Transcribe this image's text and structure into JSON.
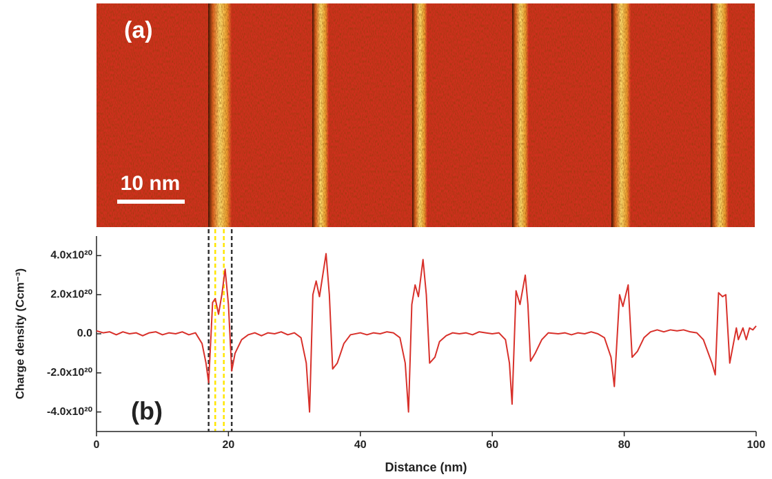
{
  "image": {
    "label": "(a)",
    "scale_bar": "10 nm"
  },
  "chart_data": {
    "type": "line",
    "panel_label": "(b)",
    "x_label": "Distance (nm)",
    "y_label": "Charge density (Ccm⁻³)",
    "color": "#d8302a",
    "x": [
      0,
      1,
      2,
      3,
      4,
      5,
      6,
      7,
      8,
      9,
      10,
      11,
      12,
      13,
      14,
      15,
      16,
      16.6,
      17,
      17.6,
      18,
      18.5,
      19,
      19.5,
      20,
      20.5,
      21,
      22,
      23,
      24,
      25,
      26,
      27,
      28,
      29,
      30,
      31,
      31.8,
      32.3,
      32.8,
      33.3,
      33.8,
      34.3,
      34.8,
      35.3,
      35.8,
      36.5,
      37.5,
      38.5,
      40,
      41,
      42,
      43,
      44,
      45,
      46,
      46.8,
      47.3,
      47.8,
      48.3,
      48.8,
      49.5,
      50,
      50.5,
      51.3,
      52,
      53,
      54,
      55,
      56,
      57,
      58,
      59,
      60,
      61,
      62,
      62.6,
      63,
      63.6,
      64.2,
      65,
      65.4,
      65.8,
      66.5,
      67.5,
      68.5,
      70,
      71,
      72,
      73,
      74,
      75,
      76,
      77,
      78,
      78.5,
      79.3,
      79.8,
      80.6,
      81.2,
      82,
      83,
      84,
      85,
      86,
      87,
      88,
      89,
      90,
      91,
      92,
      93.3,
      93.8,
      94.3,
      94.9,
      95.4,
      96,
      96.5,
      97,
      97.3,
      98,
      98.5,
      99,
      99.5,
      100
    ],
    "values": [
      1.5e+19,
      5e+18,
      1e+19,
      -5e+18,
      1e+19,
      0,
      5e+18,
      -1e+19,
      5e+18,
      1e+19,
      -5e+18,
      5e+18,
      0,
      1e+19,
      -5e+18,
      5e+18,
      -5e+19,
      -1.5e+20,
      -2.5e+20,
      1.6e+20,
      1.8e+20,
      1e+20,
      2e+20,
      3.3e+20,
      1.5e+20,
      -1.9e+20,
      -1e+20,
      -3e+19,
      -5e+18,
      5e+18,
      -1e+19,
      5e+18,
      0,
      1e+19,
      -5e+18,
      5e+18,
      -2e+19,
      -1.5e+20,
      -4e+20,
      2e+20,
      2.7e+20,
      1.9e+20,
      3e+20,
      4.1e+20,
      2e+20,
      -1.8e+20,
      -1.5e+20,
      -5e+19,
      -5e+18,
      5e+18,
      -5e+18,
      5e+18,
      0,
      1e+19,
      5e+18,
      -2e+19,
      -1.5e+20,
      -4e+20,
      1.5e+20,
      2.5e+20,
      1.9e+20,
      3.8e+20,
      2e+20,
      -1.5e+20,
      -1.2e+20,
      -4e+19,
      -1e+19,
      5e+18,
      0,
      5e+18,
      -5e+18,
      1e+19,
      5e+18,
      0,
      5e+18,
      -3e+19,
      -1.5e+20,
      -3.6e+20,
      2.2e+20,
      1.5e+20,
      3e+20,
      1.5e+20,
      -1.4e+20,
      -1e+20,
      -3e+19,
      5e+18,
      0,
      5e+18,
      -5e+18,
      5e+18,
      0,
      1e+19,
      0,
      -2e+19,
      -1.2e+20,
      -2.7e+20,
      2e+20,
      1.4e+20,
      2.5e+20,
      -1.2e+20,
      -9e+19,
      -2e+19,
      1e+19,
      2e+19,
      1e+19,
      2e+19,
      1.5e+19,
      2e+19,
      1e+19,
      5e+18,
      -3e+19,
      -1.5e+20,
      -2.1e+20,
      2.1e+20,
      1.9e+20,
      2e+20,
      -1.5e+20,
      -6e+19,
      3e+19,
      -3e+19,
      3e+19,
      -3e+19,
      3e+19,
      2e+19,
      4e+19
    ],
    "xlim": [
      0,
      100
    ],
    "xticks": [
      0,
      20,
      40,
      60,
      80,
      100
    ],
    "ylim": [
      -5e+20,
      5e+20
    ],
    "yticks": [
      {
        "value": -4e+20,
        "label": "-4.0x10²⁰"
      },
      {
        "value": -2e+20,
        "label": "-2.0x10²⁰"
      },
      {
        "value": 0,
        "label": "0.0"
      },
      {
        "value": 2e+20,
        "label": "2.0x10²⁰"
      },
      {
        "value": 4e+20,
        "label": "4.0x10²⁰"
      }
    ],
    "marker_lines": [
      {
        "x": 17,
        "color": "#333333"
      },
      {
        "x": 18,
        "color": "#ffe600"
      },
      {
        "x": 19.3,
        "color": "#ffe600"
      },
      {
        "x": 20.5,
        "color": "#333333"
      }
    ]
  }
}
